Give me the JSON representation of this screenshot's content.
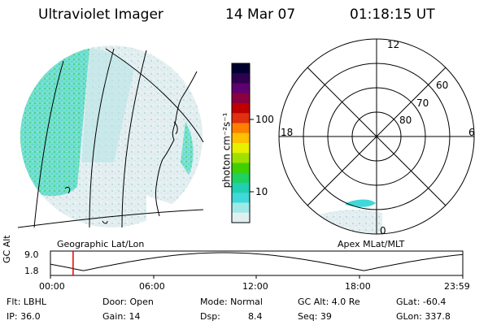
{
  "header": {
    "instrument": "Ultraviolet Imager",
    "date": "14 Mar 07",
    "time": "01:18:15 UT"
  },
  "colorbar": {
    "label": "photon cm⁻²s⁻¹",
    "scale": "log",
    "ticks": [
      "100",
      "10"
    ],
    "colors": [
      "#000030",
      "#300050",
      "#600070",
      "#8a0040",
      "#c00000",
      "#e03010",
      "#ff8000",
      "#ffc000",
      "#e8f000",
      "#a0e000",
      "#40d000",
      "#20d060",
      "#20d0b0",
      "#40d8d8",
      "#a0e8e8",
      "#e0f0f0"
    ]
  },
  "polar": {
    "mlt_labels": [
      "12",
      "18",
      "6",
      "0"
    ],
    "lat_labels": [
      "60",
      "70",
      "80"
    ]
  },
  "labels": {
    "left_panel": "Geographic Lat/Lon",
    "right_panel": "Apex MLat/MLT"
  },
  "altitude_plot": {
    "axis_label": "GC Alt",
    "y_ticks": [
      "9.0",
      "1.8"
    ],
    "x_ticks": [
      "00:00",
      "06:00",
      "12:00",
      "18:00",
      "23:59"
    ],
    "current_time_fraction": 0.055
  },
  "info": {
    "filter": "Flt: LBHL",
    "ip": "IP: 36.0",
    "door": "Door: Open",
    "gain": "Gain: 14",
    "mode": "Mode: Normal",
    "dsp_label": "Dsp:",
    "dsp_value": "8.4",
    "gc_alt": "GC Alt: 4.0 Re",
    "seq": "Seq: 39",
    "glat": "GLat: -60.4",
    "glon": "GLon: 337.8"
  }
}
